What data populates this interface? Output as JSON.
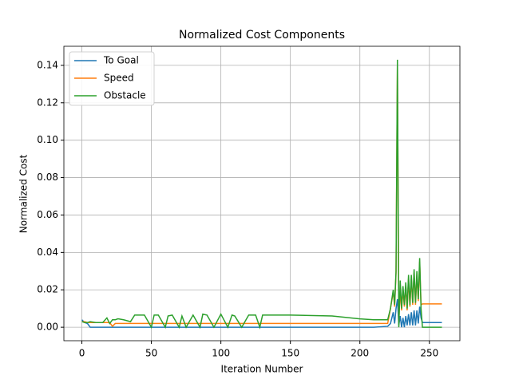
{
  "chart_data": {
    "type": "line",
    "title": "Normalized Cost Components",
    "xlabel": "Iteration Number",
    "ylabel": "Normalized Cost",
    "x": [
      0,
      2,
      4,
      6,
      10,
      15,
      18,
      20,
      22,
      24,
      26,
      30,
      35,
      38,
      40,
      42,
      45,
      50,
      52,
      55,
      60,
      62,
      65,
      70,
      72,
      75,
      80,
      85,
      87,
      90,
      95,
      100,
      105,
      108,
      110,
      115,
      120,
      125,
      128,
      130,
      135,
      150,
      180,
      200,
      210,
      220,
      222,
      224,
      225,
      226,
      227,
      228,
      229,
      230,
      231,
      232,
      233,
      234,
      235,
      236,
      237,
      238,
      239,
      240,
      241,
      242,
      243,
      244,
      245,
      250,
      259
    ],
    "series": [
      {
        "name": "To Goal",
        "color": "#1f77b4",
        "values": [
          0.004,
          0.0025,
          0.002,
          0,
          0,
          0,
          0,
          0,
          0,
          0,
          0,
          0,
          0,
          0,
          0,
          0,
          0,
          0,
          0,
          0,
          0,
          0,
          0,
          0,
          0,
          0,
          0,
          0,
          0,
          0,
          0,
          0,
          0,
          0,
          0,
          0,
          0,
          0,
          0,
          0,
          0,
          0,
          0,
          0,
          0,
          0.0005,
          0.002,
          0.008,
          0.002,
          0.01,
          0.015,
          0.001,
          0.006,
          0,
          0.005,
          0,
          0.006,
          0.001,
          0.007,
          0.001,
          0.008,
          0.001,
          0.009,
          0.001,
          0.009,
          0.002,
          0.011,
          0.005,
          0.0025,
          0.0025,
          0.0025
        ]
      },
      {
        "name": "Speed",
        "color": "#ff7f0e",
        "values": [
          0.003,
          0.003,
          0.0025,
          0.0025,
          0.0025,
          0.0025,
          0.0025,
          0.0025,
          0.0005,
          0.002,
          0.002,
          0.002,
          0.002,
          0.002,
          0.002,
          0.002,
          0.002,
          0.002,
          0.002,
          0.002,
          0.002,
          0.002,
          0.002,
          0.002,
          0.002,
          0.002,
          0.002,
          0.002,
          0.002,
          0.002,
          0.002,
          0.002,
          0.002,
          0.002,
          0.002,
          0.002,
          0.002,
          0.002,
          0.002,
          0.002,
          0.002,
          0.002,
          0.002,
          0.002,
          0.002,
          0.002,
          0.01,
          0.019,
          0.011,
          0.029,
          0.14,
          0.003,
          0.02,
          0.009,
          0.02,
          0.011,
          0.022,
          0.009,
          0.026,
          0.011,
          0.026,
          0.012,
          0.029,
          0.012,
          0.028,
          0.014,
          0.035,
          0.012,
          0.0125,
          0.0125,
          0.0125
        ]
      },
      {
        "name": "Obstacle",
        "color": "#2ca02c",
        "values": [
          0.003,
          0.0025,
          0.0025,
          0.003,
          0.0025,
          0.0025,
          0.005,
          0.002,
          0.004,
          0.004,
          0.0045,
          0.004,
          0.003,
          0.0065,
          0.0065,
          0.0065,
          0.0065,
          0,
          0.0065,
          0.0065,
          0,
          0.006,
          0.0065,
          0,
          0.006,
          0,
          0.0065,
          0,
          0.007,
          0.0065,
          0,
          0.007,
          0,
          0.0065,
          0.006,
          0,
          0.0065,
          0.0065,
          0,
          0.0065,
          0.0065,
          0.0065,
          0.006,
          0.0045,
          0.004,
          0.004,
          0.01,
          0.02,
          0.012,
          0.03,
          0.143,
          0,
          0.025,
          0.01,
          0.022,
          0.012,
          0.024,
          0.01,
          0.028,
          0.012,
          0.028,
          0.013,
          0.031,
          0.013,
          0.03,
          0.015,
          0.037,
          0.01,
          0,
          0,
          0
        ]
      }
    ],
    "xlim": [
      -12.95,
      271.95
    ],
    "ylim": [
      -0.0072,
      0.1502
    ],
    "xticks": [
      0,
      50,
      100,
      150,
      200,
      250
    ],
    "yticks": [
      {
        "value": 0,
        "label": "0.00"
      },
      {
        "value": 0.02,
        "label": "0.02"
      },
      {
        "value": 0.04,
        "label": "0.04"
      },
      {
        "value": 0.06,
        "label": "0.06"
      },
      {
        "value": 0.08,
        "label": "0.08"
      },
      {
        "value": 0.1,
        "label": "0.10"
      },
      {
        "value": 0.12,
        "label": "0.12"
      },
      {
        "value": 0.14,
        "label": "0.14"
      }
    ],
    "grid": true,
    "legend": "upper left"
  }
}
